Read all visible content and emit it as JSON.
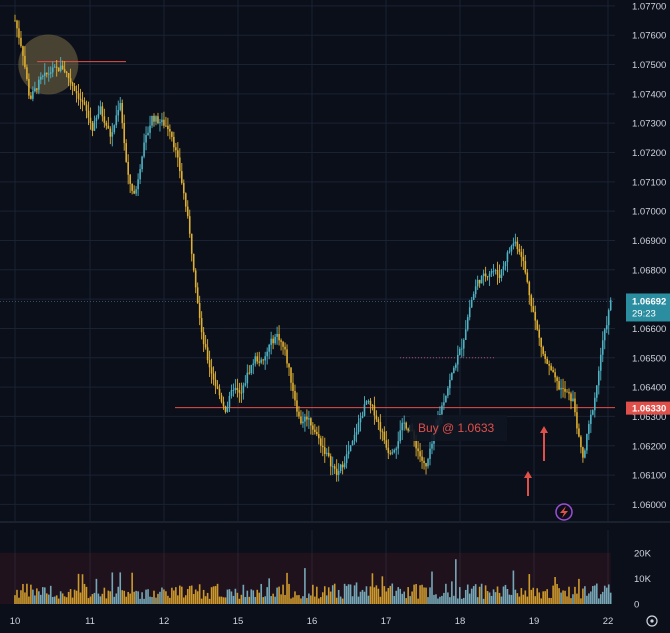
{
  "chart_data": {
    "type": "candlestick",
    "price_axis": {
      "ticks": [
        "1.07700",
        "1.07600",
        "1.07500",
        "1.07400",
        "1.07300",
        "1.07200",
        "1.07100",
        "1.07000",
        "1.06900",
        "1.06800",
        "1.06700",
        "1.06600",
        "1.06500",
        "1.06400",
        "1.06300",
        "1.06200",
        "1.06100",
        "1.06000"
      ],
      "range": [
        1.0594,
        1.0772
      ]
    },
    "time_axis": {
      "ticks": [
        "10",
        "11",
        "12",
        "15",
        "16",
        "17",
        "18",
        "19",
        "22"
      ]
    },
    "volume_axis": {
      "ticks": [
        "20K",
        "10K",
        "0"
      ],
      "range": [
        0,
        25000
      ]
    },
    "price_path": [
      [
        10.0,
        1.0765
      ],
      [
        10.1,
        1.0755
      ],
      [
        10.2,
        1.0738
      ],
      [
        10.35,
        1.0745
      ],
      [
        10.5,
        1.0748
      ],
      [
        10.65,
        1.0749
      ],
      [
        10.8,
        1.0742
      ],
      [
        10.95,
        1.0735
      ],
      [
        11.05,
        1.0728
      ],
      [
        11.15,
        1.0735
      ],
      [
        11.3,
        1.0725
      ],
      [
        11.42,
        1.0738
      ],
      [
        11.52,
        1.0712
      ],
      [
        11.62,
        1.0705
      ],
      [
        11.72,
        1.072
      ],
      [
        11.85,
        1.0732
      ],
      [
        12.0,
        1.073
      ],
      [
        12.1,
        1.0728
      ],
      [
        12.22,
        1.0715
      ],
      [
        12.32,
        1.07
      ],
      [
        12.42,
        1.068
      ],
      [
        12.52,
        1.0658
      ],
      [
        12.62,
        1.0648
      ],
      [
        12.72,
        1.064
      ],
      [
        12.85,
        1.0632
      ],
      [
        12.95,
        1.064
      ],
      [
        13.05,
        1.0637
      ],
      [
        13.15,
        1.0645
      ],
      [
        13.25,
        1.065
      ],
      [
        13.35,
        1.0648
      ],
      [
        13.45,
        1.0655
      ],
      [
        13.55,
        1.0658
      ],
      [
        13.65,
        1.0652
      ],
      [
        13.75,
        1.064
      ],
      [
        13.85,
        1.0628
      ],
      [
        13.95,
        1.063
      ],
      [
        14.05,
        1.0625
      ],
      [
        14.15,
        1.062
      ],
      [
        14.25,
        1.0615
      ],
      [
        14.35,
        1.061
      ],
      [
        14.45,
        1.0615
      ],
      [
        14.55,
        1.062
      ],
      [
        14.65,
        1.0628
      ],
      [
        14.75,
        1.0635
      ],
      [
        14.85,
        1.0632
      ],
      [
        14.95,
        1.0625
      ],
      [
        15.05,
        1.0618
      ],
      [
        15.15,
        1.062
      ],
      [
        15.25,
        1.0628
      ],
      [
        15.35,
        1.0625
      ],
      [
        15.45,
        1.0618
      ],
      [
        15.55,
        1.0612
      ],
      [
        15.65,
        1.0622
      ],
      [
        15.75,
        1.0632
      ],
      [
        15.85,
        1.064
      ],
      [
        15.95,
        1.0648
      ],
      [
        16.05,
        1.0655
      ],
      [
        16.15,
        1.0668
      ],
      [
        16.25,
        1.0676
      ],
      [
        16.35,
        1.0678
      ],
      [
        16.45,
        1.068
      ],
      [
        16.55,
        1.0678
      ],
      [
        16.65,
        1.0685
      ],
      [
        16.75,
        1.069
      ],
      [
        16.85,
        1.0685
      ],
      [
        16.95,
        1.0672
      ],
      [
        17.05,
        1.066
      ],
      [
        17.15,
        1.065
      ],
      [
        17.25,
        1.0645
      ],
      [
        17.35,
        1.064
      ],
      [
        17.45,
        1.0638
      ],
      [
        17.55,
        1.0635
      ],
      [
        17.62,
        1.0622
      ],
      [
        17.68,
        1.0615
      ],
      [
        17.74,
        1.0625
      ],
      [
        17.8,
        1.0632
      ],
      [
        17.86,
        1.064
      ],
      [
        17.92,
        1.0652
      ],
      [
        17.98,
        1.066
      ],
      [
        18.05,
        1.0669
      ]
    ],
    "current_price": "1.06692",
    "countdown": "29:23",
    "entry_level": "1.06330",
    "entry_price": 1.0633,
    "annotation": "Buy @ 1.0633",
    "volume_max": "20K"
  },
  "colors": {
    "background": "#0b0f1a",
    "grid": "#1a2233",
    "up": "#4fb3c4",
    "down": "#e0b032",
    "level_line": "#e0504a",
    "current_label": "#2a8da0",
    "arrow": "#e0504a",
    "highlight_circle": "#7a6d46"
  }
}
